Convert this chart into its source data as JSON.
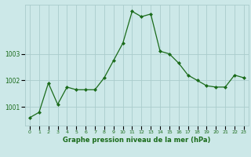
{
  "hours": [
    0,
    1,
    2,
    3,
    4,
    5,
    6,
    7,
    8,
    9,
    10,
    11,
    12,
    13,
    14,
    15,
    16,
    17,
    18,
    19,
    20,
    21,
    22,
    23
  ],
  "pressure": [
    1000.6,
    1000.8,
    1001.9,
    1001.1,
    1001.75,
    1001.65,
    1001.65,
    1001.65,
    1002.1,
    1002.75,
    1003.4,
    1004.6,
    1004.4,
    1004.5,
    1003.1,
    1003.0,
    1002.65,
    1002.2,
    1002.0,
    1001.8,
    1001.75,
    1001.75,
    1002.2,
    1002.1
  ],
  "line_color": "#1a6b1a",
  "marker_color": "#1a6b1a",
  "bg_color": "#cce8e8",
  "grid_color": "#aacccc",
  "xlabel": "Graphe pression niveau de la mer (hPa)",
  "xlabel_color": "#1a6b1a",
  "tick_color": "#1a6b1a",
  "ylim": [
    1000.3,
    1004.85
  ],
  "yticks": [
    1001,
    1002,
    1003
  ],
  "xlim": [
    -0.5,
    23.5
  ],
  "xtick_labels": [
    "0",
    "1",
    "2",
    "3",
    "4",
    "5",
    "6",
    "7",
    "8",
    "9",
    "10",
    "11",
    "12",
    "13",
    "14",
    "15",
    "16",
    "17",
    "18",
    "19",
    "20",
    "21",
    "22",
    "23"
  ]
}
